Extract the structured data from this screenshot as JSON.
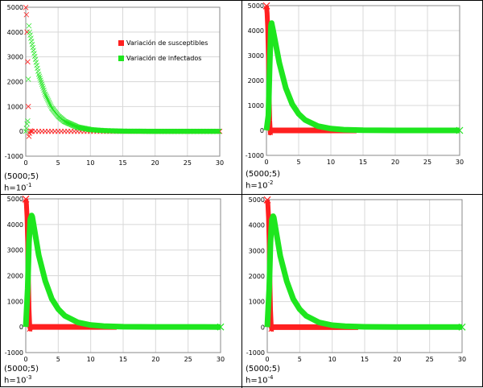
{
  "colors": {
    "susceptibles": "#ff2020",
    "infectados": "#1ee61e",
    "grid": "#d8d8d8",
    "axis": "#000000"
  },
  "chart_data": [
    {
      "type": "scatter",
      "caption_point": "(5000;5)",
      "caption_h": "h=10",
      "caption_exp": "-1",
      "xlim": [
        0,
        30
      ],
      "ylim": [
        -1000,
        5000
      ],
      "xticks": [
        "0",
        "5",
        "10",
        "15",
        "20",
        "25",
        "30"
      ],
      "yticks": [
        "-1000",
        "0",
        "1000",
        "2000",
        "3000",
        "4000",
        "5000"
      ],
      "legend": [
        "Variación de susceptibles",
        "Variación de infectados"
      ],
      "h": 0.1,
      "series": [
        {
          "name": "Variación de susceptibles",
          "points": [
            [
              0,
              4990
            ],
            [
              0.1,
              4700
            ],
            [
              0.2,
              4000
            ],
            [
              0.3,
              2800
            ],
            [
              0.4,
              1000
            ],
            [
              0.5,
              -200
            ],
            [
              0.6,
              -80
            ],
            [
              0.7,
              20
            ],
            [
              0.8,
              0
            ]
          ]
        },
        {
          "name": "Variación de infectados",
          "points": [
            [
              0,
              2
            ],
            [
              0.1,
              120
            ],
            [
              0.2,
              300
            ],
            [
              0.3,
              420
            ],
            [
              0.4,
              2100
            ],
            [
              0.5,
              4250
            ],
            [
              0.6,
              4000
            ],
            [
              0.8,
              3750
            ],
            [
              1,
              3500
            ],
            [
              2,
              2300
            ],
            [
              3,
              1500
            ],
            [
              4,
              950
            ],
            [
              5,
              620
            ],
            [
              6,
              400
            ],
            [
              8,
              170
            ],
            [
              10,
              70
            ],
            [
              12,
              30
            ],
            [
              15,
              8
            ],
            [
              20,
              1
            ],
            [
              30,
              0
            ]
          ]
        }
      ]
    },
    {
      "type": "scatter",
      "caption_point": "(5000;5)",
      "caption_h": "h=10",
      "caption_exp": "-2",
      "xlim": [
        0,
        30
      ],
      "ylim": [
        -1000,
        5000
      ],
      "xticks": [
        "0",
        "5",
        "10",
        "15",
        "20",
        "25",
        "30"
      ],
      "yticks": [
        "-1000",
        "0",
        "1000",
        "2000",
        "3000",
        "4000",
        "5000"
      ],
      "h": 0.01,
      "series": [
        {
          "name": "Variación de susceptibles",
          "points": [
            [
              0,
              4990
            ],
            [
              0.1,
              4700
            ],
            [
              0.2,
              4100
            ],
            [
              0.3,
              3000
            ],
            [
              0.4,
              1500
            ],
            [
              0.5,
              400
            ],
            [
              0.6,
              -100
            ],
            [
              0.7,
              -50
            ],
            [
              0.8,
              0
            ]
          ]
        },
        {
          "name": "Variación de infectados",
          "points": [
            [
              0,
              2
            ],
            [
              0.3,
              600
            ],
            [
              0.5,
              2600
            ],
            [
              0.7,
              4200
            ],
            [
              0.8,
              4300
            ],
            [
              1,
              4050
            ],
            [
              2,
              2700
            ],
            [
              3,
              1700
            ],
            [
              4,
              1050
            ],
            [
              5,
              660
            ],
            [
              6,
              420
            ],
            [
              8,
              170
            ],
            [
              10,
              70
            ],
            [
              12,
              30
            ],
            [
              15,
              8
            ],
            [
              20,
              1
            ],
            [
              30,
              0
            ]
          ]
        }
      ]
    },
    {
      "type": "scatter",
      "caption_point": "(5000;5)",
      "caption_h": "h=10",
      "caption_exp": "-3",
      "xlim": [
        0,
        30
      ],
      "ylim": [
        -1000,
        5000
      ],
      "xticks": [
        "0",
        "5",
        "10",
        "15",
        "20",
        "25",
        "30"
      ],
      "yticks": [
        "-1000",
        "0",
        "1000",
        "2000",
        "3000",
        "4000",
        "5000"
      ],
      "h": 0.001,
      "series": [
        {
          "name": "Variación de susceptibles",
          "points": [
            [
              0,
              4990
            ],
            [
              0.1,
              4800
            ],
            [
              0.2,
              4300
            ],
            [
              0.3,
              3300
            ],
            [
              0.4,
              1900
            ],
            [
              0.5,
              700
            ],
            [
              0.6,
              100
            ],
            [
              0.7,
              -80
            ],
            [
              0.8,
              0
            ]
          ]
        },
        {
          "name": "Variación de infectados",
          "points": [
            [
              0,
              2
            ],
            [
              0.3,
              1500
            ],
            [
              0.5,
              3300
            ],
            [
              0.7,
              4200
            ],
            [
              0.9,
              4350
            ],
            [
              1,
              4300
            ],
            [
              2,
              2800
            ],
            [
              3,
              1800
            ],
            [
              4,
              1100
            ],
            [
              5,
              700
            ],
            [
              6,
              440
            ],
            [
              8,
              180
            ],
            [
              10,
              75
            ],
            [
              12,
              32
            ],
            [
              15,
              9
            ],
            [
              20,
              1
            ],
            [
              30,
              0
            ]
          ]
        }
      ]
    },
    {
      "type": "scatter",
      "caption_point": "(5000;5)",
      "caption_h": "h=10",
      "caption_exp": "-4",
      "xlim": [
        0,
        30
      ],
      "ylim": [
        -1000,
        5000
      ],
      "xticks": [
        "0",
        "5",
        "10",
        "15",
        "20",
        "25",
        "30"
      ],
      "yticks": [
        "-1000",
        "0",
        "1000",
        "2000",
        "3000",
        "4000",
        "5000"
      ],
      "h": 0.0001,
      "series": [
        {
          "name": "Variación de susceptibles",
          "points": [
            [
              0,
              4990
            ],
            [
              0.1,
              4800
            ],
            [
              0.2,
              4300
            ],
            [
              0.3,
              3300
            ],
            [
              0.4,
              1900
            ],
            [
              0.5,
              700
            ],
            [
              0.6,
              100
            ],
            [
              0.7,
              -80
            ],
            [
              0.8,
              0
            ]
          ]
        },
        {
          "name": "Variación de infectados",
          "points": [
            [
              0,
              2
            ],
            [
              0.3,
              1500
            ],
            [
              0.5,
              3300
            ],
            [
              0.7,
              4200
            ],
            [
              0.9,
              4350
            ],
            [
              1,
              4300
            ],
            [
              2,
              2800
            ],
            [
              3,
              1800
            ],
            [
              4,
              1100
            ],
            [
              5,
              700
            ],
            [
              6,
              440
            ],
            [
              8,
              180
            ],
            [
              10,
              75
            ],
            [
              12,
              32
            ],
            [
              15,
              9
            ],
            [
              20,
              1
            ],
            [
              30,
              0
            ]
          ]
        }
      ]
    }
  ]
}
